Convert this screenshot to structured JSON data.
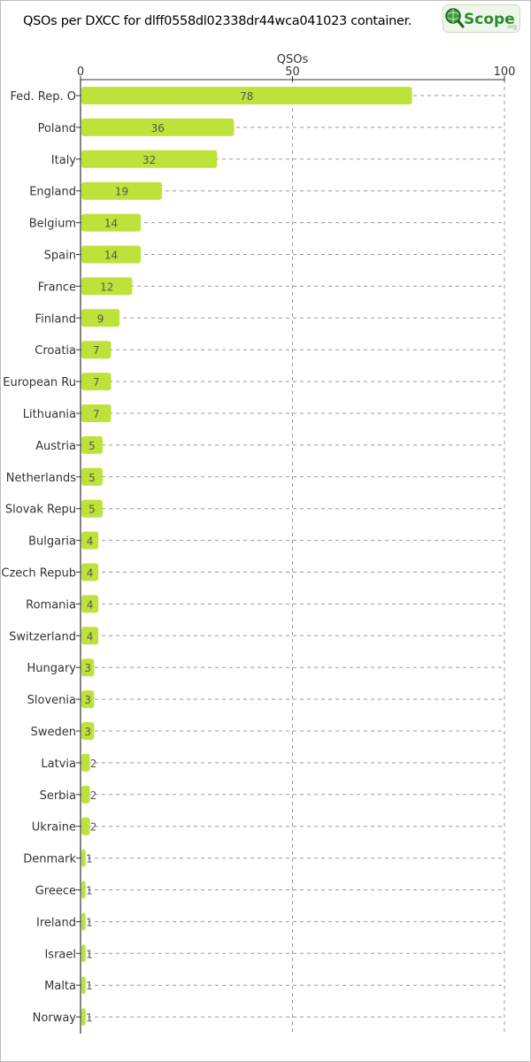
{
  "title": "QSOs per DXCC for dlff0558dl02338dr44wca041023 container.",
  "logo": {
    "text": "Scope",
    "suffix": ".org",
    "icon": "magnifier-globe-icon"
  },
  "colors": {
    "bar": "#bde33a",
    "grid": "#999999",
    "axis": "#333333",
    "logo_green": "#2e8b2e"
  },
  "chart_data": {
    "type": "bar",
    "orientation": "horizontal",
    "xlabel": "QSOs",
    "xlabel_position": "top",
    "xlim": [
      0,
      100
    ],
    "xticks": [
      0,
      50,
      100
    ],
    "grid": true,
    "legend": "none",
    "categories": [
      "Fed. Rep. O",
      "Poland",
      "Italy",
      "England",
      "Belgium",
      "Spain",
      "France",
      "Finland",
      "Croatia",
      "European Ru",
      "Lithuania",
      "Austria",
      "Netherlands",
      "Slovak Repu",
      "Bulgaria",
      "Czech Repub",
      "Romania",
      "Switzerland",
      "Hungary",
      "Slovenia",
      "Sweden",
      "Latvia",
      "Serbia",
      "Ukraine",
      "Denmark",
      "Greece",
      "Ireland",
      "Israel",
      "Malta",
      "Norway"
    ],
    "values": [
      78,
      36,
      32,
      19,
      14,
      14,
      12,
      9,
      7,
      7,
      7,
      5,
      5,
      5,
      4,
      4,
      4,
      4,
      3,
      3,
      3,
      2,
      2,
      2,
      1,
      1,
      1,
      1,
      1,
      1
    ]
  }
}
